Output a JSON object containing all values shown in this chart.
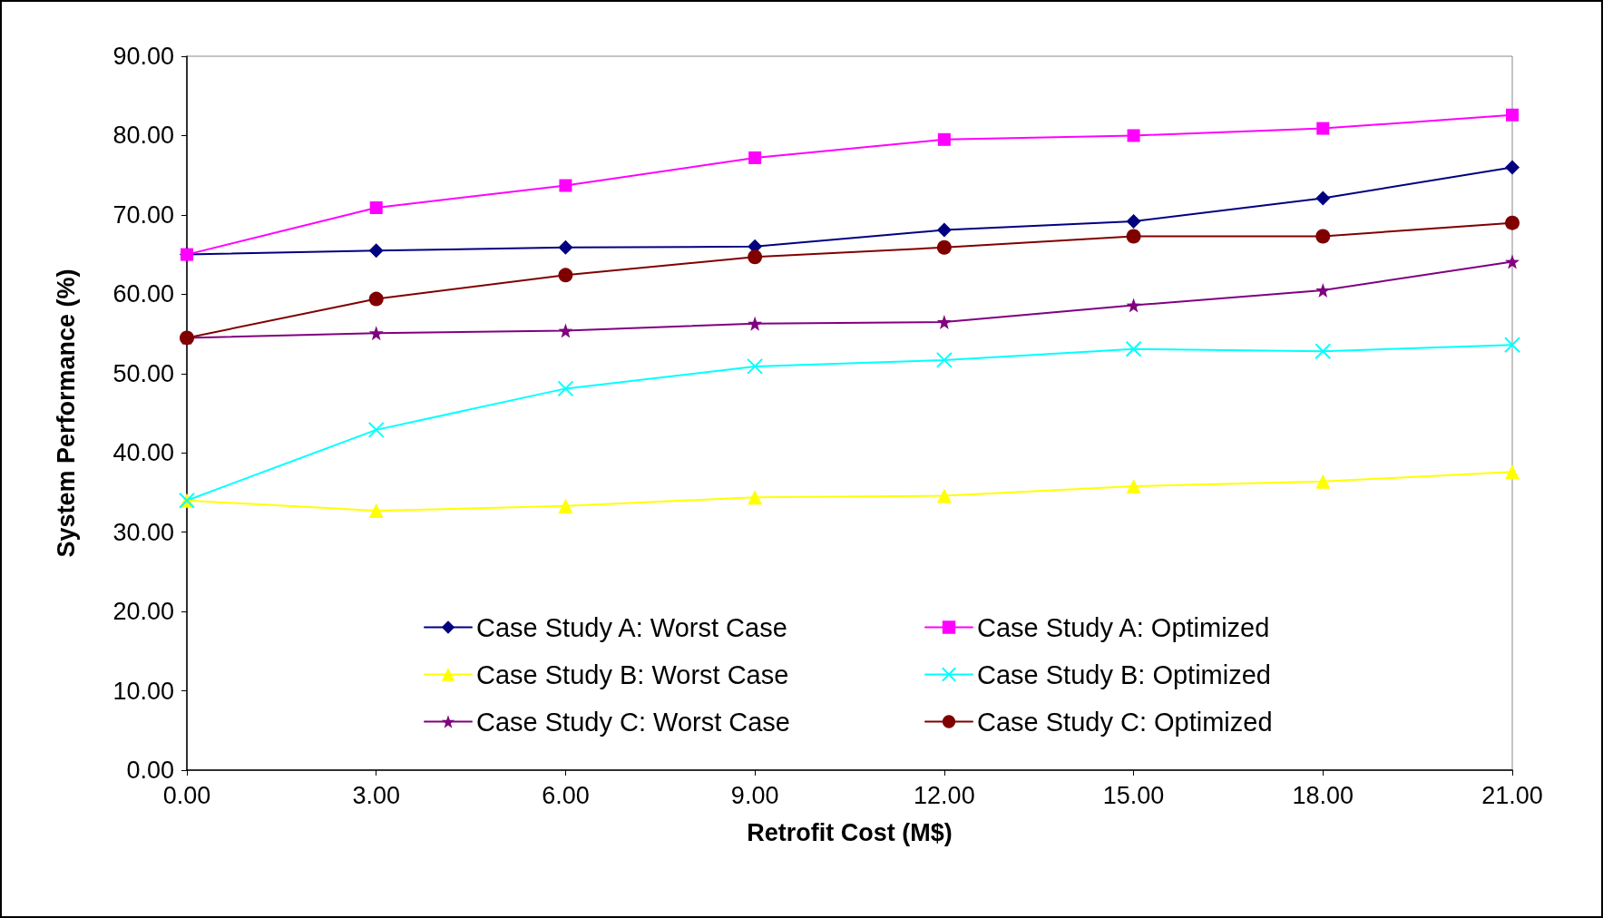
{
  "chart_data": {
    "type": "line",
    "xlabel": "Retrofit Cost (M$)",
    "ylabel": "System Performance (%)",
    "x": [
      0,
      3,
      6,
      9,
      12,
      15,
      18,
      21
    ],
    "xlim": [
      0,
      21
    ],
    "xticks": [
      {
        "value": 0,
        "label": "0.00"
      },
      {
        "value": 3,
        "label": "3.00"
      },
      {
        "value": 6,
        "label": "6.00"
      },
      {
        "value": 9,
        "label": "9.00"
      },
      {
        "value": 12,
        "label": "12.00"
      },
      {
        "value": 15,
        "label": "15.00"
      },
      {
        "value": 18,
        "label": "18.00"
      },
      {
        "value": 21,
        "label": "21.00"
      }
    ],
    "ylim": [
      0,
      90
    ],
    "yticks": [
      {
        "value": 0,
        "label": "0.00"
      },
      {
        "value": 10,
        "label": "10.00"
      },
      {
        "value": 20,
        "label": "20.00"
      },
      {
        "value": 30,
        "label": "30.00"
      },
      {
        "value": 40,
        "label": "40.00"
      },
      {
        "value": 50,
        "label": "50.00"
      },
      {
        "value": 60,
        "label": "60.00"
      },
      {
        "value": 70,
        "label": "70.00"
      },
      {
        "value": 80,
        "label": "80.00"
      },
      {
        "value": 90,
        "label": "90.00"
      }
    ],
    "grid": false,
    "legend": "bottom",
    "line_style": "solid",
    "series": [
      {
        "name": "Case Study A: Worst Case",
        "color": "#000080",
        "marker": "diamond",
        "values": [
          65.0,
          65.5,
          65.9,
          66.0,
          68.1,
          69.2,
          72.1,
          76.0
        ]
      },
      {
        "name": "Case Study A: Optimized",
        "color": "#ff00ff",
        "marker": "square",
        "values": [
          65.0,
          70.9,
          73.7,
          77.2,
          79.5,
          80.0,
          80.9,
          82.6
        ]
      },
      {
        "name": "Case Study B: Worst Case",
        "color": "#ffff00",
        "marker": "triangle",
        "values": [
          34.0,
          32.7,
          33.3,
          34.4,
          34.6,
          35.8,
          36.4,
          37.6
        ]
      },
      {
        "name": "Case Study B: Optimized",
        "color": "#00ffff",
        "marker": "cross",
        "values": [
          34.0,
          42.9,
          48.1,
          50.9,
          51.7,
          53.1,
          52.8,
          53.6
        ]
      },
      {
        "name": "Case Study C: Worst Case",
        "color": "#800080",
        "marker": "star",
        "values": [
          54.5,
          55.1,
          55.4,
          56.3,
          56.5,
          58.6,
          60.5,
          64.1
        ]
      },
      {
        "name": "Case Study C: Optimized",
        "color": "#800000",
        "marker": "circle",
        "values": [
          54.5,
          59.4,
          62.4,
          64.7,
          65.9,
          67.3,
          67.3,
          69.0
        ]
      }
    ]
  }
}
